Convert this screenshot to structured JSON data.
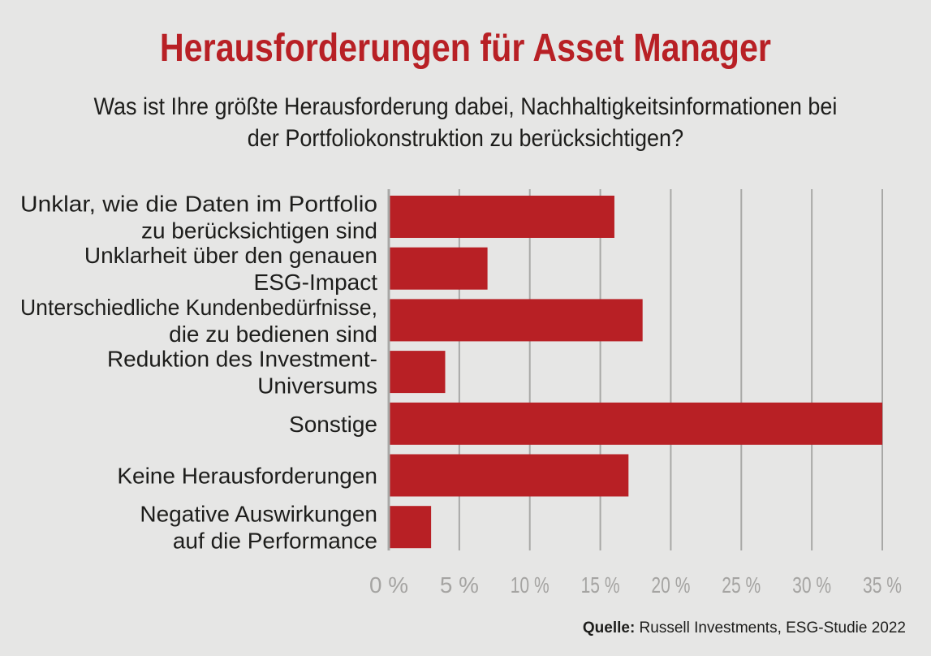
{
  "chart_data": {
    "type": "bar",
    "orientation": "horizontal",
    "title": "Herausforderungen für Asset Manager",
    "subtitle_lines": [
      "Was ist Ihre größte Herausforderung dabei, Nachhaltigkeitsinformationen bei",
      "der Portfoliokonstruktion zu berücksichtigen?"
    ],
    "categories": [
      [
        "Unklar, wie die Daten im Portfolio",
        "zu berücksichtigen sind"
      ],
      [
        "Unklarheit über den genauen",
        "ESG-Impact"
      ],
      [
        "Unterschiedliche Kundenbedürfnisse,",
        "die zu bedienen sind"
      ],
      [
        "Reduktion des Investment-",
        "Universums"
      ],
      [
        "Sonstige"
      ],
      [
        "Keine Herausforderungen"
      ],
      [
        "Negative Auswirkungen",
        "auf die Performance"
      ]
    ],
    "values": [
      16,
      7,
      18,
      4,
      35,
      17,
      3
    ],
    "xlim": [
      0,
      35
    ],
    "xticks": [
      0,
      5,
      10,
      15,
      20,
      25,
      30,
      35
    ],
    "xtick_labels": [
      "0 %",
      "5 %",
      "10 %",
      "15 %",
      "20 %",
      "25 %",
      "30 %",
      "35 %"
    ],
    "grid": true,
    "bar_color": "#b82025",
    "grid_color": "#a8a8a6"
  },
  "source": {
    "label": "Quelle:",
    "text": " Russell Investments, ESG-Studie 2022"
  }
}
